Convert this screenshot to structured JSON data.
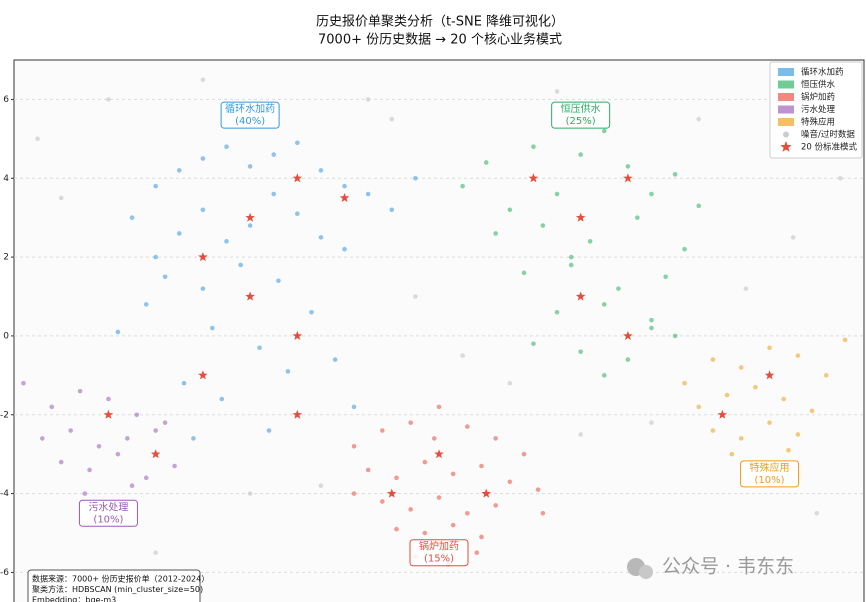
{
  "chart_data": {
    "type": "scatter",
    "title": "历史报价单聚类分析（t-SNE 降维可视化）",
    "subtitle": "7000+ 份历史数据 → 20 个核心业务模式",
    "xlim": [
      -6,
      12
    ],
    "ylim": [
      -6.75,
      7
    ],
    "yticks": [
      -6,
      -4,
      -2,
      0,
      2,
      4,
      6
    ],
    "grid": true,
    "legend": "upper right",
    "series": [
      {
        "name": "循环水加药",
        "color": "#3498db",
        "marker": "circle",
        "x": [
          -3.5,
          -3,
          -2.5,
          -2,
          -1.5,
          -1,
          -0.5,
          0,
          0.5,
          1,
          1.5,
          2,
          2.5,
          -3,
          -2.5,
          -2,
          -1.5,
          -1,
          -0.5,
          0,
          0.5,
          1,
          -3.2,
          -2.8,
          -2,
          -1.2,
          -0.4,
          0.3,
          -1.8,
          -0.8,
          0.8,
          -2.4,
          -1.6,
          -0.2,
          1.2,
          -3.8,
          -2.2,
          -0.6
        ],
        "y": [
          3,
          3.8,
          4.2,
          4.5,
          4.8,
          4.3,
          4.6,
          4.9,
          4.2,
          3.8,
          3.6,
          3.2,
          4,
          2,
          2.6,
          3.2,
          2.4,
          2.8,
          3.6,
          3.1,
          2.5,
          2.2,
          0.8,
          1.5,
          1.2,
          1.8,
          1.4,
          0.6,
          0.2,
          -0.3,
          -0.6,
          -1.2,
          -1.6,
          -0.9,
          -1.8,
          0.1,
          -2.6,
          -2.4
        ]
      },
      {
        "name": "恒压供水",
        "color": "#27ae60",
        "marker": "circle",
        "x": [
          3.5,
          4,
          4.5,
          5,
          5.5,
          6,
          6.5,
          7,
          7.5,
          8,
          8.5,
          4.2,
          5.2,
          6.2,
          7.2,
          8.2,
          4.8,
          5.8,
          6.8,
          7.8,
          5.5,
          6.5,
          7.5,
          5,
          6,
          7,
          8,
          6.5,
          7.5,
          5.8
        ],
        "y": [
          3.8,
          4.4,
          3.2,
          4.8,
          3.6,
          4.6,
          5.2,
          4.3,
          3.6,
          4.1,
          3.3,
          2.6,
          2.8,
          2.4,
          3,
          2.2,
          1.6,
          1.8,
          1.2,
          1.5,
          0.6,
          0.8,
          0.4,
          -0.2,
          -0.4,
          -0.6,
          0,
          -1,
          0.2,
          2
        ]
      },
      {
        "name": "锅炉加药",
        "color": "#e74c3c",
        "marker": "circle",
        "x": [
          1.2,
          1.8,
          2.4,
          3,
          3.6,
          4.2,
          4.8,
          1.5,
          2.1,
          2.7,
          3.3,
          3.9,
          4.5,
          5.1,
          1.8,
          2.4,
          3,
          3.6,
          4.2,
          2.1,
          2.7,
          3.3,
          3.9,
          2.5,
          3.2,
          3.8,
          2.9,
          1.2,
          5.2
        ],
        "y": [
          -2.8,
          -2.4,
          -2.2,
          -1.8,
          -2.3,
          -2.6,
          -3,
          -3.4,
          -3.6,
          -3.2,
          -3.5,
          -3.3,
          -3.7,
          -3.9,
          -4.2,
          -4.4,
          -4.1,
          -4.5,
          -4.3,
          -4.9,
          -5,
          -4.8,
          -5.1,
          -5.6,
          -5.8,
          -5.5,
          -2.6,
          -4,
          -4.5
        ]
      },
      {
        "name": "污水处理",
        "color": "#9b59b6",
        "marker": "circle",
        "x": [
          -5.8,
          -5.2,
          -4.6,
          -4,
          -3.4,
          -2.8,
          -5.4,
          -4.8,
          -4.2,
          -3.6,
          -3,
          -5,
          -4.4,
          -3.8,
          -3.2,
          -4.5,
          -3.5,
          -2.6
        ],
        "y": [
          -1.2,
          -1.8,
          -1.4,
          -1.6,
          -2,
          -2.2,
          -2.6,
          -2.4,
          -2.8,
          -2.6,
          -2.4,
          -3.2,
          -3.4,
          -3,
          -3.6,
          -4,
          -3.8,
          -3.3
        ]
      },
      {
        "name": "特殊应用",
        "color": "#f39c12",
        "marker": "circle",
        "x": [
          8.2,
          8.8,
          9.4,
          10,
          10.6,
          11.2,
          8.5,
          9.1,
          9.7,
          10.3,
          10.9,
          8.8,
          9.4,
          10,
          10.6,
          9.2,
          10.4,
          11.6
        ],
        "y": [
          -1.2,
          -0.6,
          -0.8,
          -0.3,
          -0.5,
          -1,
          -1.8,
          -1.5,
          -1.3,
          -1.6,
          -1.9,
          -2.4,
          -2.6,
          -2.2,
          -2.5,
          -3,
          -2.9,
          -0.1
        ]
      },
      {
        "name": "噪音/过时数据",
        "color": "#cccccc",
        "marker": "dot",
        "x": [
          -5.5,
          -4,
          -2,
          1.5,
          2.5,
          3.5,
          8.5,
          10.5,
          11.5,
          -1,
          4.5,
          6,
          -5,
          0.5,
          7.5,
          9.5,
          11,
          -3,
          5.5,
          2
        ],
        "y": [
          5,
          6,
          6.5,
          6,
          1,
          -0.5,
          5.5,
          2.5,
          4,
          -4,
          -1.2,
          -2.5,
          3.5,
          -3.8,
          -2.2,
          1.2,
          -4.5,
          -5.5,
          6.2,
          5.5
        ]
      },
      {
        "name": "20 份标准模式",
        "color": "#e74c3c",
        "marker": "star",
        "x": [
          0,
          -1,
          1,
          -2,
          -1,
          0,
          -2,
          0,
          5,
          7,
          6,
          6,
          7,
          3,
          2,
          4,
          -4,
          -3,
          10,
          9
        ],
        "y": [
          4,
          3,
          3.5,
          2,
          1,
          0,
          -1,
          -2,
          4,
          4,
          3,
          1,
          0,
          -3,
          -4,
          -4,
          -2,
          -3,
          -1,
          -2
        ]
      }
    ],
    "annotations": [
      {
        "text": [
          "循环水加药",
          "(40%)"
        ],
        "x": -1,
        "y": 5.6,
        "color": "#3498db"
      },
      {
        "text": [
          "恒压供水",
          "(25%)"
        ],
        "x": 6,
        "y": 5.6,
        "color": "#27ae60"
      },
      {
        "text": [
          "锅炉加药",
          "(15%)"
        ],
        "x": 3,
        "y": -5.5,
        "color": "#e74c3c"
      },
      {
        "text": [
          "污水处理",
          "(10%)"
        ],
        "x": -4,
        "y": -4.5,
        "color": "#9b59b6"
      },
      {
        "text": [
          "特殊应用",
          "(10%)"
        ],
        "x": 10,
        "y": -3.5,
        "color": "#f39c12"
      }
    ],
    "footnote": [
      "数据来源：7000+ 份历史报价单（2012-2024）",
      "聚类方法：HDBSCAN (min_cluster_size=50)",
      "Embedding：bge-m3"
    ]
  },
  "watermark": "公众号 · 韦东东"
}
